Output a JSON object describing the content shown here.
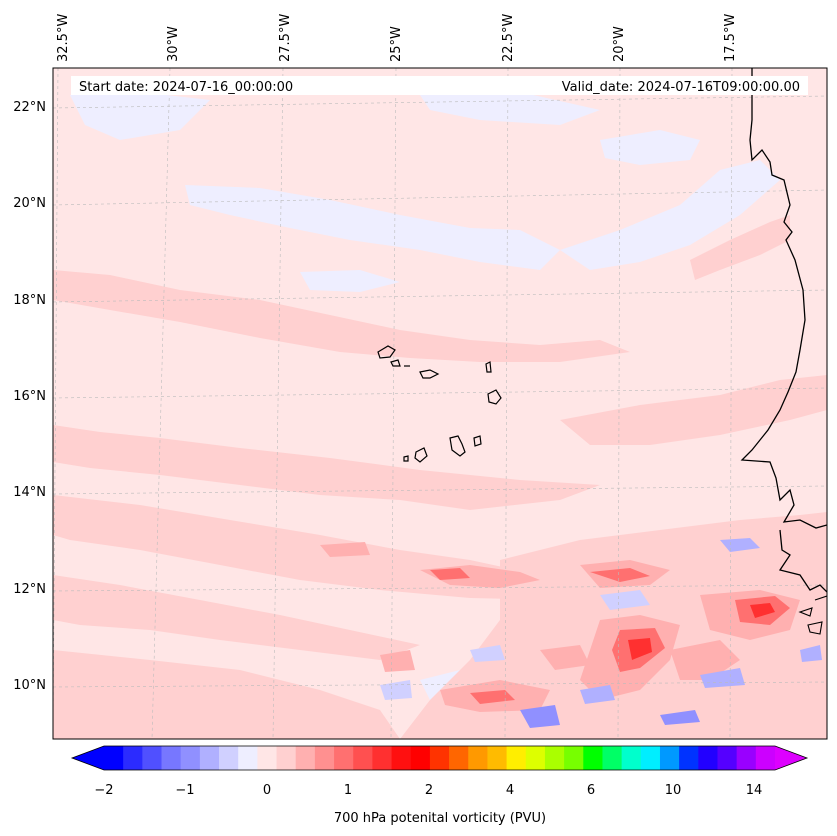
{
  "map": {
    "start_date": "Start date: 2024-07-16_00:00:00",
    "valid_date": "Valid_date: 2024-07-16T09:00:00.00",
    "lon_labels": [
      "32.5°W",
      "30°W",
      "27.5°W",
      "25°W",
      "22.5°W",
      "20°W",
      "17.5°W"
    ],
    "lat_labels": [
      "22°N",
      "20°N",
      "18°N",
      "16°N",
      "14°N",
      "12°N",
      "10°N"
    ]
  },
  "colorbar": {
    "label": "700 hPa potenital vorticity (PVU)",
    "tick_labels": [
      "−2",
      "−1",
      "0",
      "1",
      "2",
      "4",
      "6",
      "10",
      "14"
    ],
    "colors": [
      "#0000ff",
      "#2b2bff",
      "#5050ff",
      "#7777ff",
      "#9090ff",
      "#b0b0ff",
      "#d0d0ff",
      "#eeeeff",
      "#ffe6e6",
      "#ffd0d0",
      "#ffb0b0",
      "#ff9090",
      "#ff7070",
      "#ff5050",
      "#ff3030",
      "#ff1010",
      "#ff0000",
      "#ff3300",
      "#ff6600",
      "#ff9900",
      "#ffbb00",
      "#ffee00",
      "#ddff00",
      "#aaff00",
      "#77ff00",
      "#00ff00",
      "#00ff66",
      "#00ffcc",
      "#00eeff",
      "#0099ff",
      "#0033ff",
      "#2200ff",
      "#5500ff",
      "#9900ff",
      "#cc00ff"
    ],
    "arrow_left_color": "#0000ff",
    "arrow_right_color": "#dd00ff"
  }
}
